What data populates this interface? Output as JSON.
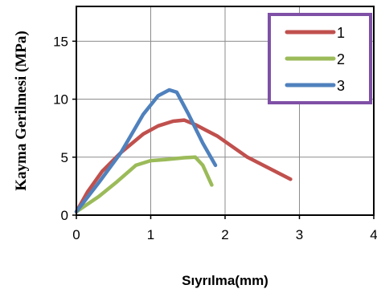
{
  "chart_data": {
    "type": "line",
    "title": "",
    "xlabel": "Sıyrılma(mm)",
    "ylabel": "Kayma Gerilmesi (MPa)",
    "xlim": [
      0,
      4
    ],
    "ylim": [
      0,
      18
    ],
    "xticks": [
      0,
      1,
      2,
      3,
      4
    ],
    "yticks": [
      0,
      5,
      10,
      15
    ],
    "grid": true,
    "legend_position": "top-right",
    "series": [
      {
        "name": "1",
        "color": "#c0504d",
        "x": [
          0.0,
          0.15,
          0.35,
          0.6,
          0.9,
          1.1,
          1.3,
          1.45,
          1.6,
          1.9,
          2.3,
          2.88
        ],
        "y": [
          0.3,
          2.0,
          3.8,
          5.4,
          7.0,
          7.7,
          8.1,
          8.2,
          7.8,
          6.8,
          5.0,
          3.1
        ]
      },
      {
        "name": "2",
        "color": "#9bbb59",
        "x": [
          0.0,
          0.3,
          0.55,
          0.8,
          1.0,
          1.2,
          1.45,
          1.6,
          1.7,
          1.82
        ],
        "y": [
          0.3,
          1.6,
          2.9,
          4.3,
          4.7,
          4.8,
          4.95,
          5.0,
          4.3,
          2.6
        ]
      },
      {
        "name": "3",
        "color": "#4f81bd",
        "x": [
          0.0,
          0.3,
          0.6,
          0.9,
          1.1,
          1.25,
          1.35,
          1.5,
          1.7,
          1.87
        ],
        "y": [
          0.3,
          2.8,
          5.4,
          8.7,
          10.3,
          10.8,
          10.6,
          8.8,
          6.2,
          4.3
        ]
      }
    ]
  }
}
